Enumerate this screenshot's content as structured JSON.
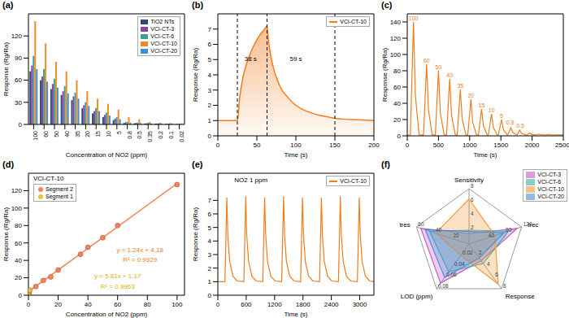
{
  "chart_data": [
    {
      "type": "bar",
      "title": "(a)",
      "x_label": "Concentration of NO2 (ppm)",
      "y_label": "Response (Rg/Ra)",
      "categories": [
        "100",
        "60",
        "50",
        "40",
        "35",
        "20",
        "15",
        "10",
        "5",
        "0.8",
        "0.5",
        "0.35",
        "0.2",
        "0.1",
        "0.02"
      ],
      "series": [
        {
          "name": "TiO2 NTs",
          "color": "#2e4a7d",
          "values": [
            72,
            60,
            48,
            40,
            33,
            22,
            15,
            10,
            6,
            2,
            1.5,
            1.2,
            1,
            0.8,
            0.5
          ]
        },
        {
          "name": "VCl-CT-3",
          "color": "#8e3fa8",
          "values": [
            80,
            65,
            55,
            45,
            38,
            26,
            18,
            13,
            8,
            3,
            2,
            1.5,
            1.2,
            1,
            0.6
          ]
        },
        {
          "name": "VCl-CT-6",
          "color": "#3a9e9a",
          "values": [
            93,
            75,
            62,
            52,
            43,
            30,
            22,
            16,
            10,
            3.5,
            2.5,
            2,
            1.5,
            1.2,
            0.8
          ]
        },
        {
          "name": "VCl-CT-10",
          "color": "#f08a24",
          "values": [
            140,
            110,
            85,
            72,
            60,
            45,
            35,
            28,
            20,
            10,
            7,
            3.5,
            2.2,
            2,
            1.5
          ]
        },
        {
          "name": "VCl-CT-20",
          "color": "#3d8fd8",
          "values": [
            75,
            58,
            50,
            42,
            35,
            25,
            18,
            12,
            7,
            2.5,
            2,
            1.5,
            1.2,
            1,
            0.6
          ]
        }
      ],
      "ylim": [
        0,
        150
      ],
      "yticks": [
        0,
        30,
        60,
        90,
        120
      ],
      "legend": "upper right"
    },
    {
      "type": "area",
      "title": "(b)",
      "x_label": "Time (s)",
      "y_label": "Response (Rg/Ra)",
      "series": [
        {
          "name": "VCl-CT-10",
          "color": "#f07d1a",
          "x": [
            0,
            10,
            20,
            25,
            28,
            32,
            36,
            40,
            45,
            50,
            55,
            60,
            63,
            65,
            68,
            72,
            76,
            80,
            90,
            100,
            110,
            120,
            130,
            140,
            150,
            160,
            180,
            200
          ],
          "values": [
            1,
            1,
            1,
            1,
            2.5,
            3.8,
            4.6,
            5.2,
            5.8,
            6.3,
            6.7,
            7.0,
            7.2,
            6.2,
            5.2,
            4.3,
            3.7,
            3.2,
            2.5,
            2.0,
            1.7,
            1.5,
            1.35,
            1.25,
            1.15,
            1.1,
            1.05,
            1.0
          ]
        }
      ],
      "vlines": [
        25,
        63,
        150
      ],
      "annotations": [
        {
          "text": "38 s",
          "x": 42,
          "y": 4.8
        },
        {
          "text": "59 s",
          "x": 100,
          "y": 4.8
        }
      ],
      "xlim": [
        0,
        200
      ],
      "xticks": [
        0,
        50,
        100,
        150,
        200
      ],
      "ylim": [
        0,
        8
      ],
      "yticks": [
        0,
        1,
        2,
        3,
        4,
        5,
        6,
        7
      ],
      "legend": "upper right"
    },
    {
      "type": "line",
      "title": "(c)",
      "x_label": "Time (s)",
      "y_label": "Response (Rg/Ra)",
      "series": [
        {
          "color": "#f07d1a",
          "x": [
            0,
            50,
            100,
            130,
            190,
            260,
            310,
            340,
            400,
            450,
            500,
            530,
            590,
            630,
            680,
            710,
            770,
            800,
            850,
            880,
            940,
            970,
            1020,
            1050,
            1110,
            1140,
            1190,
            1220,
            1280,
            1300,
            1350,
            1380,
            1440,
            1460,
            1510,
            1540,
            1600,
            1610,
            1660,
            1690,
            1750,
            1760,
            1800,
            1830,
            1890,
            1910,
            1960,
            1990,
            2050,
            2060,
            2110,
            2140,
            2200,
            2210,
            2260,
            2290,
            2350,
            2360,
            2400,
            2430,
            2490,
            2500
          ],
          "values": [
            1,
            1,
            140,
            49.7,
            1.3,
            1,
            88,
            31.5,
            1.3,
            1,
            80,
            28.7,
            1.3,
            1,
            70,
            25.2,
            1.3,
            1,
            57,
            20.6,
            1.3,
            1,
            45,
            16.4,
            1.3,
            1,
            33,
            12.2,
            1.3,
            1,
            27,
            10.1,
            1.3,
            1,
            20,
            7.7,
            1.3,
            1,
            10,
            4.2,
            1.3,
            1,
            7,
            3.1,
            1.3,
            1,
            3.5,
            1.9,
            1.2,
            1,
            2.2,
            1.4,
            1.1,
            1,
            2.0,
            1.35,
            1.1,
            1,
            1.5,
            1.2,
            1.05,
            1.05
          ]
        }
      ],
      "annotations": [
        {
          "text": "100",
          "x": 100,
          "y": 140
        },
        {
          "text": "60",
          "x": 310,
          "y": 88
        },
        {
          "text": "50",
          "x": 500,
          "y": 80
        },
        {
          "text": "40",
          "x": 680,
          "y": 70
        },
        {
          "text": "35",
          "x": 850,
          "y": 57
        },
        {
          "text": "20",
          "x": 1020,
          "y": 45
        },
        {
          "text": "15",
          "x": 1190,
          "y": 33
        },
        {
          "text": "10",
          "x": 1350,
          "y": 27
        },
        {
          "text": "5",
          "x": 1510,
          "y": 20
        },
        {
          "text": "0.8",
          "x": 1650,
          "y": 12
        },
        {
          "text": "0.5",
          "x": 1810,
          "y": 8
        }
      ],
      "xlim": [
        0,
        2500
      ],
      "xticks": [
        0,
        500,
        1000,
        1500,
        2000,
        2500
      ],
      "ylim": [
        0,
        150
      ],
      "yticks": [
        0,
        20,
        40,
        60,
        80,
        100,
        120,
        140
      ]
    },
    {
      "type": "scatter",
      "title": "(d)",
      "subtitle": "VCl-CT-10",
      "x_label": "Concentration of NO2 (ppm)",
      "y_label": "Response (Rg/Ra)",
      "series": [
        {
          "name": "Segment 2",
          "color": "#f4845f",
          "x": [
            5,
            10,
            15,
            20,
            35,
            40,
            50,
            60,
            100
          ],
          "values": [
            10,
            17,
            21,
            29,
            47,
            55,
            66,
            80,
            127
          ]
        },
        {
          "name": "Segment 1",
          "color": "#f2c12e",
          "x": [
            0.02,
            0.1,
            0.2,
            0.35,
            0.5,
            0.8
          ],
          "values": [
            1.3,
            1.8,
            2.3,
            3.2,
            4.1,
            5.8
          ]
        }
      ],
      "fits": [
        {
          "color": "#f4845f",
          "x": [
            0,
            100
          ],
          "values": [
            4.18,
            128.18
          ]
        },
        {
          "color": "#f2c12e",
          "x": [
            0,
            0.8
          ],
          "values": [
            1.17,
            5.82
          ]
        }
      ],
      "annotations": [
        {
          "text": "y = 1.24x + 4.18",
          "x": 75,
          "y": 48,
          "color": "#f07d1a"
        },
        {
          "text": "R² = 0.9929",
          "x": 75,
          "y": 36,
          "color": "#f07d1a"
        },
        {
          "text": "y = 5.81x + 1.17",
          "x": 60,
          "y": 18,
          "color": "#e0b000"
        },
        {
          "text": "R² = 0.9963",
          "x": 60,
          "y": 6,
          "color": "#e0b000"
        }
      ],
      "xlim": [
        0,
        105
      ],
      "xticks": [
        0,
        20,
        40,
        60,
        80,
        100
      ],
      "ylim": [
        0,
        140
      ],
      "yticks": [
        0,
        20,
        40,
        60,
        80,
        100,
        120
      ],
      "legend": "upper left"
    },
    {
      "type": "line",
      "title": "(e)",
      "x_label": "Time (s)",
      "y_label": "Response (Rg/Ra)",
      "series": [
        {
          "name": "VCl-CT-10",
          "color": "#f07d1a",
          "x": [
            0,
            150,
            190,
            210,
            250,
            320,
            410,
            550,
            590,
            610,
            650,
            720,
            810,
            950,
            990,
            1010,
            1050,
            1120,
            1210,
            1350,
            1390,
            1410,
            1450,
            1520,
            1610,
            1750,
            1790,
            1810,
            1850,
            1920,
            2010,
            2150,
            2190,
            2210,
            2250,
            2320,
            2410,
            2550,
            2590,
            2610,
            2650,
            2720,
            2810,
            2950,
            2990,
            3010,
            3050,
            3120,
            3210,
            3300
          ],
          "values": [
            1,
            1,
            7.2,
            4.5,
            2.5,
            1.4,
            1.05,
            1,
            7.3,
            4.5,
            2.5,
            1.4,
            1.05,
            1,
            7.2,
            4.5,
            2.5,
            1.4,
            1.05,
            1,
            7.3,
            4.5,
            2.5,
            1.4,
            1.05,
            1,
            7.2,
            4.5,
            2.5,
            1.4,
            1.05,
            1,
            7.2,
            4.5,
            2.5,
            1.4,
            1.05,
            1,
            7.3,
            4.5,
            2.5,
            1.4,
            1.05,
            1,
            7.2,
            4.5,
            2.5,
            1.4,
            1.05,
            1
          ]
        }
      ],
      "annotations": [
        {
          "text": "NO2 1 ppm",
          "x": 700,
          "y": 8.2
        }
      ],
      "xlim": [
        0,
        3300
      ],
      "xticks": [
        0,
        600,
        1200,
        1800,
        2400,
        3000
      ],
      "ylim": [
        0,
        9
      ],
      "yticks": [
        0,
        1,
        2,
        3,
        4,
        5,
        6,
        7
      ],
      "legend": "upper right"
    },
    {
      "type": "radar",
      "title": "(f)",
      "axes": [
        {
          "name": "Sensitivity",
          "lim": [
            0,
            8
          ],
          "ticks": [
            2,
            4,
            6,
            8
          ]
        },
        {
          "name": "trec",
          "lim": [
            0,
            120
          ],
          "ticks": [
            40,
            80,
            120
          ]
        },
        {
          "name": "Response",
          "lim": [
            0,
            8
          ],
          "ticks": [
            2,
            4,
            6,
            8
          ]
        },
        {
          "name": "LOD (ppm)",
          "lim": [
            0,
            0.08
          ],
          "ticks": [
            0.02,
            0.04,
            0.06,
            0.08
          ]
        },
        {
          "name": "tres",
          "lim": [
            0,
            60
          ],
          "ticks": [
            20,
            40,
            60
          ]
        }
      ],
      "series": [
        {
          "name": "VCl-CT-3",
          "color": "#c65bc6",
          "values": [
            1.5,
            110,
            3,
            0.07,
            55
          ]
        },
        {
          "name": "VCl-CT-6",
          "color": "#45aaaa",
          "values": [
            2,
            90,
            3.5,
            0.05,
            45
          ]
        },
        {
          "name": "VCl-CT-10",
          "color": "#f29a3a",
          "values": [
            6.5,
            59,
            7.2,
            0.02,
            38
          ]
        },
        {
          "name": "VCl-CT-20",
          "color": "#4a8fd8",
          "values": [
            1.8,
            80,
            2.5,
            0.06,
            50
          ]
        }
      ],
      "legend": "upper right"
    }
  ]
}
